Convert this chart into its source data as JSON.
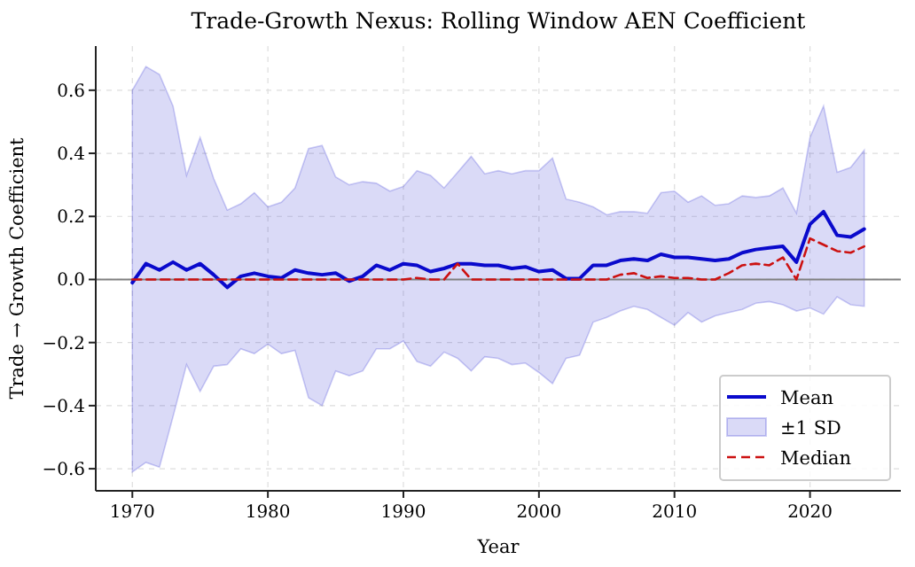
{
  "chart_data": {
    "type": "line",
    "title": "Trade-Growth Nexus: Rolling Window AEN Coefficient",
    "xlabel": "Year",
    "ylabel": "Trade → Growth Coefficient",
    "x": [
      1970,
      1971,
      1972,
      1973,
      1974,
      1975,
      1976,
      1977,
      1978,
      1979,
      1980,
      1981,
      1982,
      1983,
      1984,
      1985,
      1986,
      1987,
      1988,
      1989,
      1990,
      1991,
      1992,
      1993,
      1994,
      1995,
      1996,
      1997,
      1998,
      1999,
      2000,
      2001,
      2002,
      2003,
      2004,
      2005,
      2006,
      2007,
      2008,
      2009,
      2010,
      2011,
      2012,
      2013,
      2014,
      2015,
      2016,
      2017,
      2018,
      2019,
      2020,
      2021,
      2022,
      2023,
      2024
    ],
    "series": [
      {
        "name": "Mean",
        "color": "#0a0acc",
        "values": [
          -0.01,
          0.05,
          0.03,
          0.055,
          0.03,
          0.05,
          0.015,
          -0.025,
          0.01,
          0.02,
          0.01,
          0.005,
          0.03,
          0.02,
          0.015,
          0.02,
          -0.005,
          0.01,
          0.045,
          0.03,
          0.05,
          0.045,
          0.025,
          0.035,
          0.05,
          0.05,
          0.045,
          0.045,
          0.035,
          0.04,
          0.025,
          0.03,
          0.003,
          0.003,
          0.045,
          0.045,
          0.06,
          0.065,
          0.06,
          0.08,
          0.07,
          0.07,
          0.065,
          0.06,
          0.065,
          0.085,
          0.095,
          0.1,
          0.105,
          0.055,
          0.175,
          0.215,
          0.14,
          0.135,
          0.16
        ],
        "lower": [
          -0.61,
          -0.58,
          -0.595,
          -0.435,
          -0.27,
          -0.355,
          -0.275,
          -0.27,
          -0.22,
          -0.235,
          -0.205,
          -0.235,
          -0.225,
          -0.375,
          -0.4,
          -0.29,
          -0.305,
          -0.29,
          -0.22,
          -0.22,
          -0.195,
          -0.26,
          -0.275,
          -0.23,
          -0.25,
          -0.29,
          -0.245,
          -0.25,
          -0.27,
          -0.265,
          -0.295,
          -0.33,
          -0.25,
          -0.24,
          -0.135,
          -0.12,
          -0.1,
          -0.085,
          -0.095,
          -0.12,
          -0.145,
          -0.105,
          -0.135,
          -0.115,
          -0.105,
          -0.095,
          -0.075,
          -0.07,
          -0.08,
          -0.1,
          -0.09,
          -0.11,
          -0.055,
          -0.08,
          -0.085
        ],
        "upper": [
          0.6,
          0.675,
          0.65,
          0.55,
          0.33,
          0.45,
          0.32,
          0.22,
          0.24,
          0.275,
          0.23,
          0.245,
          0.29,
          0.415,
          0.425,
          0.325,
          0.3,
          0.31,
          0.305,
          0.28,
          0.295,
          0.345,
          0.33,
          0.29,
          0.34,
          0.39,
          0.335,
          0.345,
          0.335,
          0.345,
          0.345,
          0.385,
          0.255,
          0.245,
          0.23,
          0.205,
          0.215,
          0.215,
          0.21,
          0.275,
          0.28,
          0.245,
          0.265,
          0.235,
          0.24,
          0.265,
          0.26,
          0.265,
          0.29,
          0.21,
          0.45,
          0.55,
          0.34,
          0.355,
          0.41
        ]
      },
      {
        "name": "Median",
        "color": "#cc1111",
        "line_style": "dashed",
        "values": [
          0,
          0,
          0,
          0,
          0,
          0,
          0,
          0,
          0,
          0,
          0,
          0,
          0,
          0,
          0,
          0,
          0,
          0,
          0,
          0,
          0,
          0.005,
          0,
          0,
          0.05,
          0,
          0,
          0,
          0,
          0,
          0,
          0,
          0,
          0,
          0,
          0,
          0.015,
          0.02,
          0.005,
          0.01,
          0.005,
          0.005,
          0,
          0,
          0.02,
          0.045,
          0.05,
          0.045,
          0.07,
          0,
          0.13,
          0.11,
          0.09,
          0.085,
          0.105
        ]
      }
    ],
    "annotations": [
      "±1 SD"
    ],
    "xlim": [
      1967.3,
      2026.7
    ],
    "xticks": [
      1970,
      1980,
      1990,
      2000,
      2010,
      2020
    ],
    "ylim": [
      -0.67,
      0.74
    ],
    "yticks": [
      {
        "value": -0.6,
        "label": "−0.6"
      },
      {
        "value": -0.4,
        "label": "−0.4"
      },
      {
        "value": -0.2,
        "label": "−0.2"
      },
      {
        "value": 0,
        "label": "0.0"
      },
      {
        "value": 0.2,
        "label": "0.2"
      },
      {
        "value": 0.4,
        "label": "0.4"
      },
      {
        "value": 0.6,
        "label": "0.6"
      }
    ],
    "ref_lines": [
      {
        "axis": "y",
        "value": 0,
        "color": "#808080"
      }
    ],
    "grid": true,
    "legend": "bottom right"
  }
}
